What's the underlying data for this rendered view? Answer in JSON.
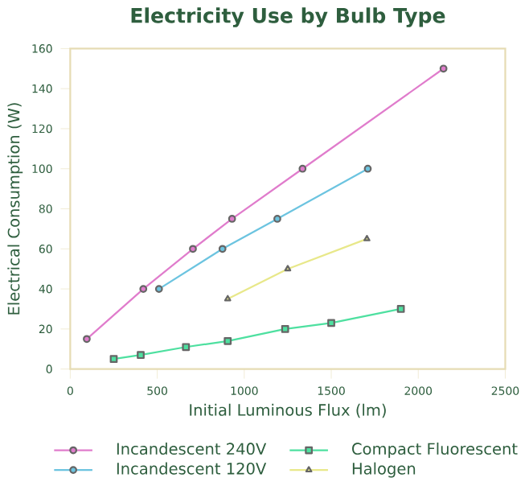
{
  "chart_data": {
    "type": "line",
    "title": "Electricity Use by Bulb Type",
    "xlabel": "Initial Luminous Flux (lm)",
    "ylabel": "Electrical Consumption (W)",
    "xlim": [
      0,
      2500
    ],
    "xticks": [
      0,
      500,
      1000,
      1500,
      2000,
      2500
    ],
    "ylim": [
      0,
      160
    ],
    "yticks": [
      0,
      20,
      40,
      60,
      80,
      100,
      120,
      140,
      160
    ],
    "grid": false,
    "legend": "bottom",
    "series": [
      {
        "name": "Incandescent 240V",
        "color": "#e07ccc",
        "marker": "circle",
        "x": [
          95,
          420,
          705,
          930,
          1335,
          2145
        ],
        "values": [
          15,
          40,
          60,
          75,
          100,
          150
        ]
      },
      {
        "name": "Incandescent 120V",
        "color": "#6cc4e0",
        "marker": "circle",
        "x": [
          510,
          875,
          1190,
          1710
        ],
        "values": [
          40,
          60,
          75,
          100
        ]
      },
      {
        "name": "Compact Fluorescent",
        "color": "#4ee0a0",
        "marker": "square",
        "x": [
          250,
          405,
          665,
          905,
          1235,
          1500,
          1900
        ],
        "values": [
          5,
          7,
          11,
          14,
          20,
          23,
          30
        ]
      },
      {
        "name": "Halogen",
        "color": "#e8e88a",
        "marker": "triangle",
        "x": [
          905,
          1250,
          1705
        ],
        "values": [
          35,
          50,
          65
        ]
      }
    ]
  }
}
